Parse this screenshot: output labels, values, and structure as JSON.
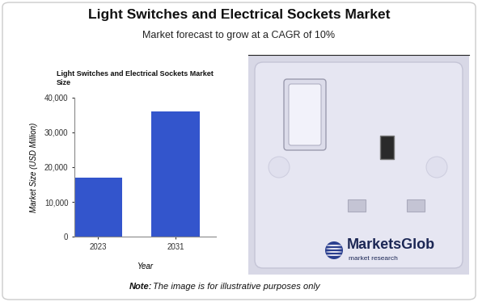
{
  "chart_data": {
    "type": "bar",
    "title": "Light Switches and Electrical Sockets Market Size",
    "x_label": "Year",
    "y_label": "Market Size (USD Million)",
    "categories": [
      "2023",
      "2031"
    ],
    "values": [
      17000,
      36000
    ],
    "color": "#3355cc",
    "ylim": [
      0,
      40000
    ],
    "yticks": [
      0,
      {
        "value": 10000,
        "label": "10,000"
      },
      {
        "value": 20000,
        "label": "20,000"
      },
      {
        "value": 30000,
        "label": "30,000"
      },
      {
        "value": 40000,
        "label": "40,000"
      }
    ],
    "grid": false
  },
  "header": {
    "title": "Light Switches and Electrical Sockets Market",
    "subtitle": "Market forecast to grow at a CAGR of 10%"
  },
  "image": {
    "logo_name": "MarketsGlob",
    "logo_tagline": "market research"
  },
  "note": {
    "label": "Note:",
    "text": "The image is for illustrative purposes only"
  }
}
